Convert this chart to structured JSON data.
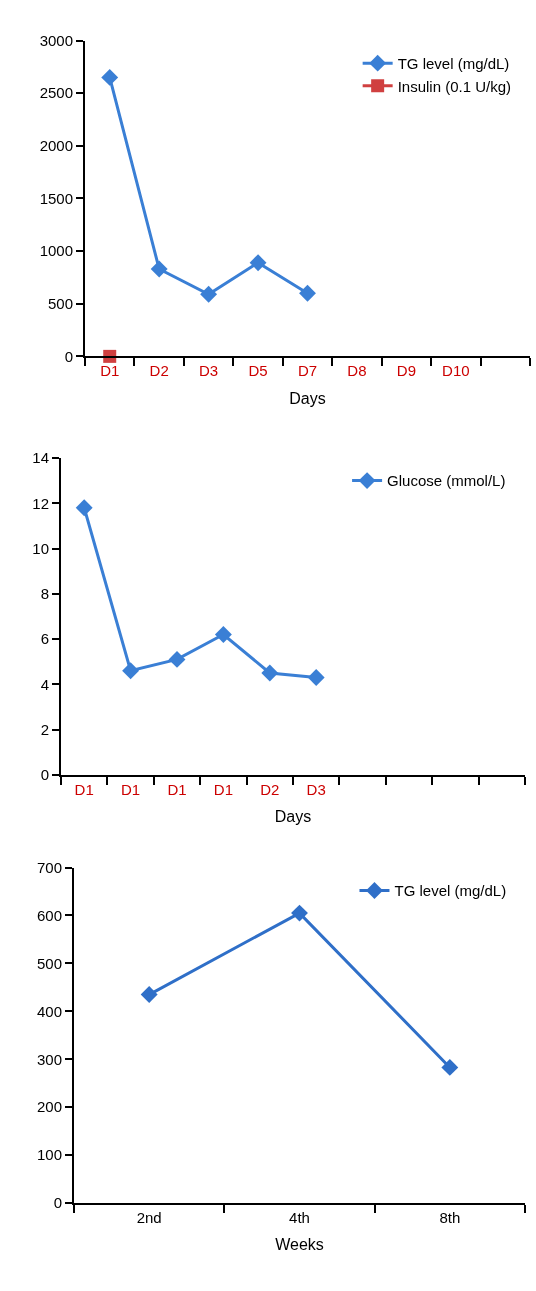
{
  "chart_data": [
    {
      "type": "line",
      "categories": [
        "D1",
        "D2",
        "D3",
        "D5",
        "D7",
        "D8",
        "D9",
        "D10",
        null
      ],
      "xlabel": "Days",
      "ylim": [
        0,
        3000
      ],
      "yticks": [
        0,
        500,
        1000,
        1500,
        2000,
        2500,
        3000
      ],
      "legend": "top right",
      "marker": "diamond",
      "line_style": "solid",
      "series": [
        {
          "name": "TG level (mg/dL)",
          "color": "#3a7fd5",
          "values": [
            2650,
            830,
            590,
            890,
            600,
            null,
            null,
            null,
            null
          ]
        },
        {
          "name": "Insulin (0.1 U/kg)",
          "color": "#d04040",
          "marker": "square",
          "values": [
            0,
            null,
            null,
            null,
            null,
            null,
            null,
            null,
            null
          ]
        }
      ]
    },
    {
      "type": "line",
      "categories": [
        "D1",
        "D1",
        "D1",
        "D1",
        "D2",
        "D3",
        null,
        null,
        null,
        null
      ],
      "xlabel": "Days",
      "ylim": [
        0,
        14
      ],
      "yticks": [
        0,
        2,
        4,
        6,
        8,
        10,
        12,
        14
      ],
      "legend": "top right",
      "marker": "diamond",
      "line_style": "solid",
      "series": [
        {
          "name": "Glucose (mmol/L)",
          "color": "#3a7fd5",
          "values": [
            11.8,
            4.6,
            5.1,
            6.2,
            4.5,
            4.3,
            null,
            null,
            null,
            null
          ]
        }
      ]
    },
    {
      "type": "line",
      "categories": [
        "2nd",
        "4th",
        "8th"
      ],
      "xlabel": "Weeks",
      "ylim": [
        0,
        700
      ],
      "yticks": [
        0,
        100,
        200,
        300,
        400,
        500,
        600,
        700
      ],
      "legend": "top right",
      "marker": "diamond",
      "line_style": "solid",
      "series": [
        {
          "name": "TG level (mg/dL)",
          "color": "#2f6fc8",
          "values": [
            435,
            605,
            283
          ]
        }
      ]
    }
  ]
}
